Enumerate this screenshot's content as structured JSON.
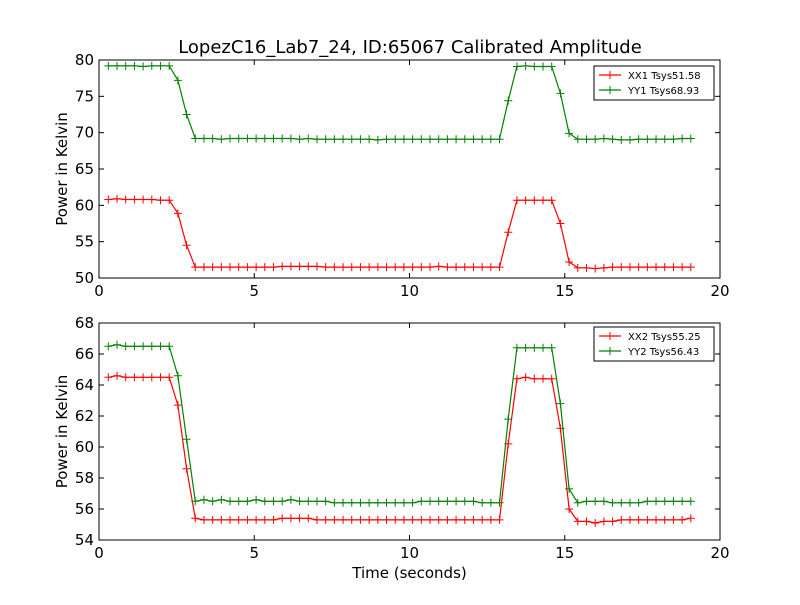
{
  "title": "LopezC16_Lab7_24, ID:65067 Calibrated Amplitude",
  "colors": {
    "red": "#ff0000",
    "green": "#008000"
  },
  "chart_data": [
    {
      "type": "line",
      "xlabel": "",
      "ylabel": "Power in Kelvin",
      "xlim": [
        0,
        20
      ],
      "ylim": [
        50,
        80
      ],
      "xticks": [
        0,
        5,
        10,
        15,
        20
      ],
      "yticks": [
        50,
        55,
        60,
        65,
        70,
        75,
        80
      ],
      "legend": "top-right",
      "grid": false,
      "marker": "+",
      "x": [
        0.3,
        0.58,
        0.86,
        1.14,
        1.42,
        1.7,
        1.98,
        2.26,
        2.54,
        2.82,
        3.1,
        3.38,
        3.66,
        3.94,
        4.22,
        4.5,
        4.78,
        5.06,
        5.34,
        5.62,
        5.9,
        6.18,
        6.46,
        6.74,
        7.02,
        7.3,
        7.58,
        7.86,
        8.14,
        8.42,
        8.7,
        8.98,
        9.26,
        9.54,
        9.82,
        10.1,
        10.38,
        10.66,
        10.94,
        11.22,
        11.5,
        11.78,
        12.06,
        12.34,
        12.62,
        12.9,
        13.18,
        13.46,
        13.74,
        14.02,
        14.3,
        14.58,
        14.86,
        15.14,
        15.42,
        15.7,
        15.98,
        16.26,
        16.54,
        16.82,
        17.1,
        17.38,
        17.66,
        17.94,
        18.22,
        18.5,
        18.78,
        19.06
      ],
      "series": [
        {
          "name": "XX1 Tsys51.58",
          "color": "#ff0000",
          "values": [
            60.8,
            60.9,
            60.8,
            60.8,
            60.8,
            60.8,
            60.7,
            60.7,
            58.9,
            54.5,
            51.5,
            51.5,
            51.5,
            51.5,
            51.5,
            51.5,
            51.5,
            51.5,
            51.5,
            51.5,
            51.6,
            51.6,
            51.6,
            51.6,
            51.6,
            51.5,
            51.5,
            51.5,
            51.5,
            51.5,
            51.5,
            51.5,
            51.5,
            51.5,
            51.5,
            51.5,
            51.5,
            51.5,
            51.6,
            51.5,
            51.5,
            51.5,
            51.5,
            51.5,
            51.5,
            51.5,
            56.3,
            60.7,
            60.7,
            60.7,
            60.7,
            60.7,
            57.5,
            52.2,
            51.4,
            51.4,
            51.3,
            51.4,
            51.5,
            51.5,
            51.5,
            51.5,
            51.5,
            51.5,
            51.5,
            51.5,
            51.5,
            51.5
          ]
        },
        {
          "name": "YY1 Tsys68.93",
          "color": "#008000",
          "values": [
            79.2,
            79.2,
            79.2,
            79.2,
            79.1,
            79.2,
            79.2,
            79.2,
            77.2,
            72.5,
            69.2,
            69.2,
            69.2,
            69.1,
            69.2,
            69.2,
            69.2,
            69.2,
            69.2,
            69.2,
            69.2,
            69.2,
            69.1,
            69.2,
            69.1,
            69.1,
            69.1,
            69.1,
            69.1,
            69.1,
            69.1,
            69.0,
            69.1,
            69.1,
            69.1,
            69.1,
            69.1,
            69.1,
            69.1,
            69.1,
            69.1,
            69.1,
            69.1,
            69.1,
            69.1,
            69.1,
            74.4,
            79.1,
            79.2,
            79.1,
            79.1,
            79.1,
            75.4,
            69.9,
            69.1,
            69.1,
            69.1,
            69.2,
            69.1,
            69.0,
            69.0,
            69.1,
            69.1,
            69.1,
            69.1,
            69.1,
            69.2,
            69.2
          ]
        }
      ]
    },
    {
      "type": "line",
      "xlabel": "Time (seconds)",
      "ylabel": "Power in Kelvin",
      "xlim": [
        0,
        20
      ],
      "ylim": [
        54,
        68
      ],
      "xticks": [
        0,
        5,
        10,
        15,
        20
      ],
      "yticks": [
        54,
        56,
        58,
        60,
        62,
        64,
        66,
        68
      ],
      "legend": "top-right",
      "grid": false,
      "marker": "+",
      "x": [
        0.3,
        0.58,
        0.86,
        1.14,
        1.42,
        1.7,
        1.98,
        2.26,
        2.54,
        2.82,
        3.1,
        3.38,
        3.66,
        3.94,
        4.22,
        4.5,
        4.78,
        5.06,
        5.34,
        5.62,
        5.9,
        6.18,
        6.46,
        6.74,
        7.02,
        7.3,
        7.58,
        7.86,
        8.14,
        8.42,
        8.7,
        8.98,
        9.26,
        9.54,
        9.82,
        10.1,
        10.38,
        10.66,
        10.94,
        11.22,
        11.5,
        11.78,
        12.06,
        12.34,
        12.62,
        12.9,
        13.18,
        13.46,
        13.74,
        14.02,
        14.3,
        14.58,
        14.86,
        15.14,
        15.42,
        15.7,
        15.98,
        16.26,
        16.54,
        16.82,
        17.1,
        17.38,
        17.66,
        17.94,
        18.22,
        18.5,
        18.78,
        19.06
      ],
      "series": [
        {
          "name": "XX2 Tsys55.25",
          "color": "#ff0000",
          "values": [
            64.5,
            64.6,
            64.5,
            64.5,
            64.5,
            64.5,
            64.5,
            64.5,
            62.7,
            58.6,
            55.4,
            55.3,
            55.3,
            55.3,
            55.3,
            55.3,
            55.3,
            55.3,
            55.3,
            55.3,
            55.4,
            55.4,
            55.4,
            55.4,
            55.3,
            55.3,
            55.3,
            55.3,
            55.3,
            55.3,
            55.3,
            55.3,
            55.3,
            55.3,
            55.3,
            55.3,
            55.3,
            55.3,
            55.3,
            55.3,
            55.3,
            55.3,
            55.3,
            55.3,
            55.3,
            55.3,
            60.2,
            64.4,
            64.5,
            64.4,
            64.4,
            64.4,
            61.2,
            56.0,
            55.2,
            55.2,
            55.1,
            55.2,
            55.2,
            55.3,
            55.3,
            55.3,
            55.3,
            55.3,
            55.3,
            55.3,
            55.3,
            55.4
          ]
        },
        {
          "name": "YY2 Tsys56.43",
          "color": "#008000",
          "values": [
            66.5,
            66.6,
            66.5,
            66.5,
            66.5,
            66.5,
            66.5,
            66.5,
            64.6,
            60.5,
            56.5,
            56.6,
            56.5,
            56.6,
            56.5,
            56.5,
            56.5,
            56.6,
            56.5,
            56.5,
            56.5,
            56.6,
            56.5,
            56.5,
            56.5,
            56.5,
            56.4,
            56.4,
            56.4,
            56.4,
            56.4,
            56.4,
            56.4,
            56.4,
            56.4,
            56.4,
            56.5,
            56.5,
            56.5,
            56.5,
            56.5,
            56.5,
            56.5,
            56.4,
            56.4,
            56.4,
            61.8,
            66.4,
            66.4,
            66.4,
            66.4,
            66.4,
            62.8,
            57.3,
            56.4,
            56.5,
            56.5,
            56.5,
            56.4,
            56.4,
            56.4,
            56.4,
            56.5,
            56.5,
            56.5,
            56.5,
            56.5,
            56.5
          ]
        }
      ]
    }
  ]
}
